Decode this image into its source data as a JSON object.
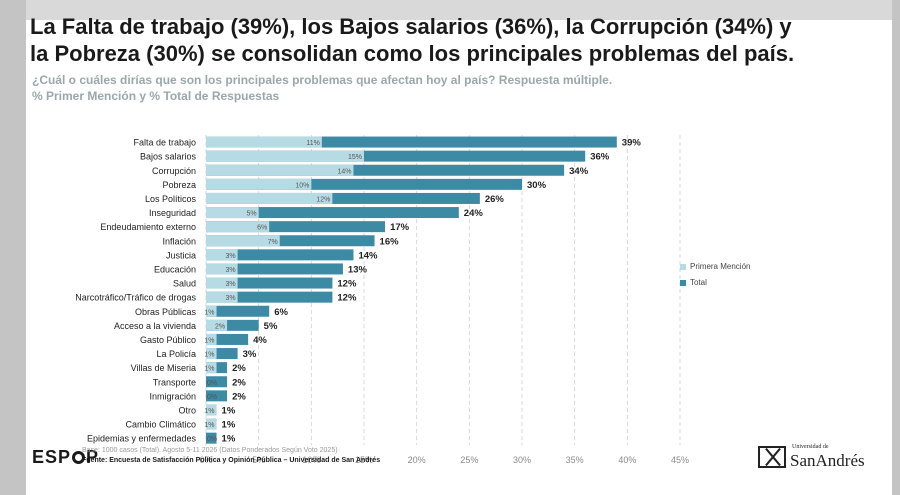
{
  "header": {
    "title_line1": "La Falta de trabajo (39%), los Bajos salarios (36%), la Corrupción (34%) y",
    "title_line2": "la Pobreza (30%) se consolidan como los principales problemas del país.",
    "subtitle": "¿Cuál o cuáles dirías que son los principales problemas que afectan hoy al país? Respuesta múltiple.",
    "subtitle2": "% Primer Mención y % Total de Respuestas"
  },
  "footer": {
    "logo": "ESP P",
    "base": "Base: 1000 casos (Total). Agosto 5-11 2026 (Datos Ponderados Según Voto 2025)",
    "fuente": "Fuente: Encuesta de Satisfacción Política y Opinión Pública – Universidad de San Andrés",
    "udesa_small": "Universidad de",
    "udesa_big": "SanAndrés"
  },
  "chart_data": {
    "type": "bar",
    "orientation": "horizontal",
    "categories": [
      "Falta de trabajo",
      "Bajos salarios",
      "Corrupción",
      "Pobreza",
      "Los Políticos",
      "Inseguridad",
      "Endeudamiento externo",
      "Inflación",
      "Justicia",
      "Educación",
      "Salud",
      "Narcotráfico/Tráfico de drogas",
      "Obras Públicas",
      "Acceso a la vivienda",
      "Gasto Público",
      "La Policía",
      "Villas de Miseria",
      "Transporte",
      "Inmigración",
      "Otro",
      "Cambio Climático",
      "Epidemias y enfermedades"
    ],
    "series": [
      {
        "name": "Primera Mención",
        "color": "#b7dbe4",
        "values": [
          11,
          15,
          14,
          10,
          12,
          5,
          6,
          7,
          3,
          3,
          3,
          3,
          1,
          2,
          1,
          1,
          1,
          0,
          0,
          1,
          1,
          0
        ],
        "labels": [
          "11%",
          "15%",
          "14%",
          "10%",
          "12%",
          "5%",
          "6%",
          "7%",
          "3%",
          "3%",
          "3%",
          "3%",
          "1%",
          "2%",
          "1%",
          "1%",
          "1%",
          "0%",
          "0%",
          "1%",
          "1%",
          "0%"
        ]
      },
      {
        "name": "Total",
        "color": "#3d8aa5",
        "values": [
          39,
          36,
          34,
          30,
          26,
          24,
          17,
          16,
          14,
          13,
          12,
          12,
          6,
          5,
          4,
          3,
          2,
          2,
          2,
          1,
          1,
          1
        ],
        "labels": [
          "39%",
          "36%",
          "34%",
          "30%",
          "26%",
          "24%",
          "17%",
          "16%",
          "14%",
          "13%",
          "12%",
          "12%",
          "6%",
          "5%",
          "4%",
          "3%",
          "2%",
          "2%",
          "2%",
          "1%",
          "1%",
          "1%"
        ]
      }
    ],
    "xlim": [
      0,
      45
    ],
    "xticks": [
      "0%",
      "5%",
      "10%",
      "15%",
      "20%",
      "25%",
      "30%",
      "35%",
      "40%",
      "45%"
    ],
    "grid": true,
    "legend_position": "right"
  }
}
